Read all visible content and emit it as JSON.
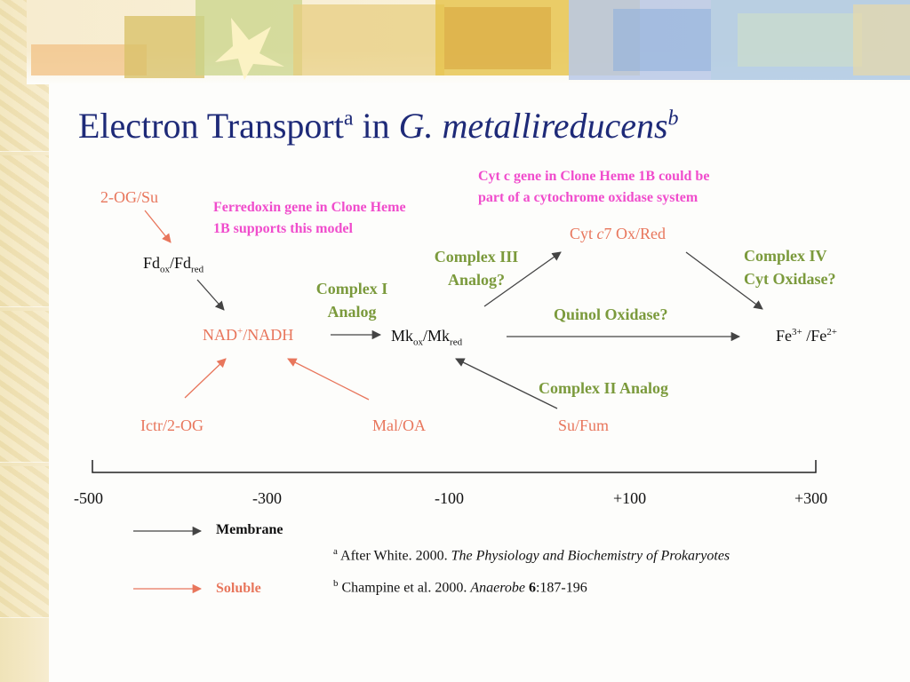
{
  "title": {
    "main": "Electron Transport",
    "sup_a": "a",
    "in": " in ",
    "species": "G. metallireducens",
    "sup_b": "b"
  },
  "nodes": {
    "og_su": "2-OG/Su",
    "fd_base": "Fd",
    "fd_ox": "ox",
    "fd_slash": "/Fd",
    "fd_red": "red",
    "nad": "NAD",
    "nad_sup": "+",
    "nad_rest": "/NADH",
    "mk_base": "Mk",
    "mk_ox": "ox",
    "mk_slash": "/Mk",
    "mk_red": "red",
    "cyt_a": "Cyt ",
    "cyt_c": "c",
    "cyt_b": "7 Ox/Red",
    "fe_a": "Fe",
    "fe_sup1": "3+",
    "fe_b": " /Fe",
    "fe_sup2": "2+",
    "ictr": "Ictr/2-OG",
    "mal": "Mal/OA",
    "su_fum": "Su/Fum"
  },
  "labels": {
    "complex_i_1": "Complex I",
    "complex_i_2": "Analog",
    "complex_iii_1": "Complex III",
    "complex_iii_2": "Analog?",
    "complex_iv_1": "Complex IV",
    "complex_iv_2": "Cyt Oxidase?",
    "quinol": "Quinol Oxidase?",
    "complex_ii": "Complex II Analog"
  },
  "notes": {
    "ferredoxin_1": "Ferredoxin gene in Clone Heme",
    "ferredoxin_2": "1B supports this model",
    "cytc_1": "Cyt c gene in Clone Heme 1B could be",
    "cytc_2": "part of a cytochrome oxidase system"
  },
  "axis": {
    "ticks": [
      "-500",
      "-300",
      "-100",
      "+100",
      "+300"
    ]
  },
  "legend": {
    "membrane": "Membrane",
    "soluble": "Soluble"
  },
  "references": {
    "a_sup": "a",
    "a_text": " After White. 2000.  ",
    "a_book": "The Physiology and Biochemistry of Prokaryotes",
    "b_sup": "b",
    "b_text": " Champine et al. 2000. ",
    "b_journal": "Anaerobe",
    "b_vol": "6",
    "b_pages": ":187-196"
  },
  "colors": {
    "title": "#1e2a78",
    "membrane_arrow": "#444444",
    "soluble_arrow": "#e8765c",
    "label_green": "#7b9a3c",
    "note_pink": "#f04ccc"
  }
}
